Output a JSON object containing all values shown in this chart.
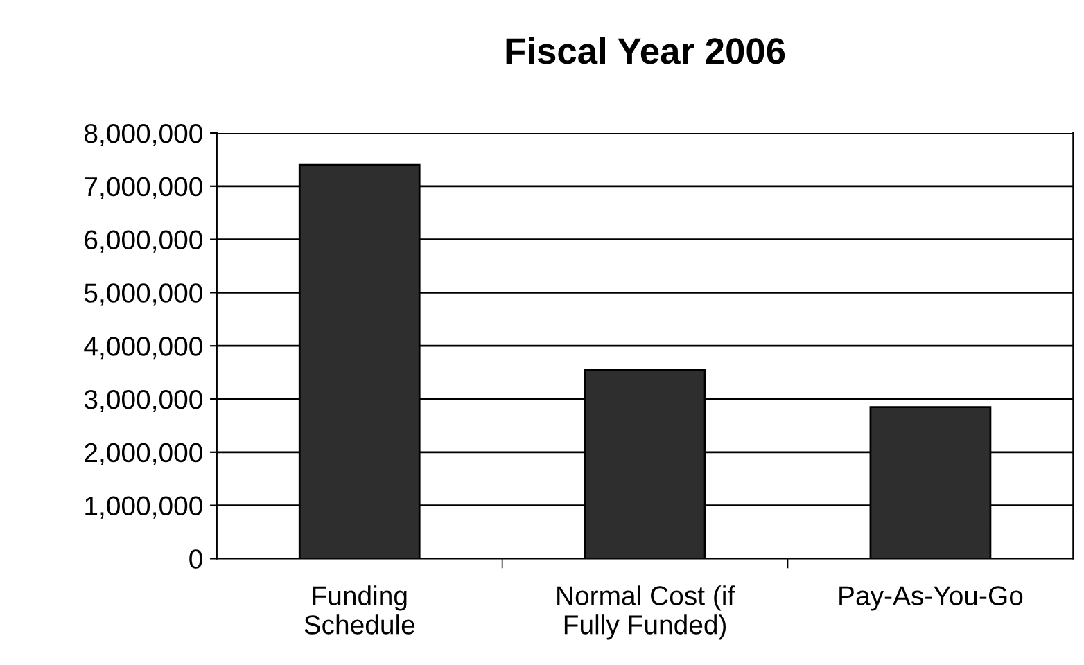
{
  "chart_data": {
    "type": "bar",
    "title": "Fiscal Year 2006",
    "categories": [
      "Funding\nSchedule",
      "Normal Cost (if\nFully Funded)",
      "Pay-As-You-Go"
    ],
    "values": [
      7400000,
      3550000,
      2850000
    ],
    "color": "#2e2e2e",
    "ylim": [
      0,
      8000000
    ],
    "yticks": [
      {
        "value": 0,
        "label": "0"
      },
      {
        "value": 1000000,
        "label": "1,000,000"
      },
      {
        "value": 2000000,
        "label": "2,000,000"
      },
      {
        "value": 3000000,
        "label": "3,000,000"
      },
      {
        "value": 4000000,
        "label": "4,000,000"
      },
      {
        "value": 5000000,
        "label": "5,000,000"
      },
      {
        "value": 6000000,
        "label": "6,000,000"
      },
      {
        "value": 7000000,
        "label": "7,000,000"
      },
      {
        "value": 8000000,
        "label": "8,000,000"
      }
    ],
    "grid": "y"
  }
}
